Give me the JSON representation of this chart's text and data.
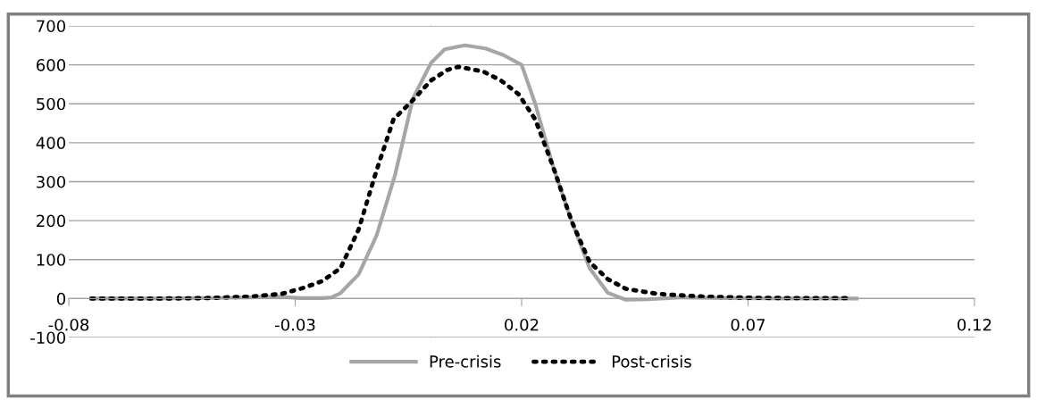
{
  "chart_data": {
    "type": "line",
    "x": [
      -0.075,
      -0.06,
      -0.05,
      -0.04,
      -0.034,
      -0.029,
      -0.024,
      -0.022,
      -0.02,
      -0.016,
      -0.012,
      -0.008,
      -0.004,
      0,
      0.003,
      0.0075,
      0.012,
      0.016,
      0.02,
      0.023,
      0.027,
      0.031,
      0.035,
      0.039,
      0.043,
      0.048,
      0.055,
      0.065,
      0.08,
      0.094
    ],
    "series": [
      {
        "name": "Pre-crisis",
        "color": "#a6a6a6",
        "line_style": "solid",
        "values": [
          0,
          0,
          1,
          3,
          5,
          1,
          1,
          3,
          14,
          62,
          163,
          315,
          514,
          605,
          640,
          650,
          642,
          625,
          600,
          500,
          337,
          200,
          78,
          15,
          -3,
          -2,
          3,
          1,
          0,
          0
        ]
      },
      {
        "name": "Post-crisis",
        "color": "#000000",
        "line_style": "dotted",
        "x": [
          -0.075,
          -0.06,
          -0.05,
          -0.04,
          -0.033,
          -0.028,
          -0.024,
          -0.02,
          -0.016,
          -0.0122,
          -0.0083,
          -0.0043,
          0,
          0.0036,
          0.006,
          0.0115,
          0.0154,
          0.0193,
          0.023,
          0.027,
          0.031,
          0.035,
          0.039,
          0.043,
          0.05,
          0.06,
          0.07,
          0.08,
          0.092
        ],
        "values": [
          0,
          0,
          1,
          5,
          12,
          28,
          45,
          78,
          177,
          323,
          460,
          506,
          560,
          587,
          595,
          583,
          560,
          525,
          460,
          337,
          200,
          94,
          50,
          25,
          12,
          5,
          2,
          1,
          1
        ]
      }
    ],
    "xlim": [
      -0.08,
      0.12
    ],
    "xticks": [
      -0.08,
      -0.03,
      0.02,
      0.07,
      0.12
    ],
    "ylim": [
      -100,
      700
    ],
    "yticks": [
      -100,
      0,
      100,
      200,
      300,
      400,
      500,
      600,
      700
    ],
    "grid": "y",
    "legend": "bottom",
    "marker": "none"
  }
}
